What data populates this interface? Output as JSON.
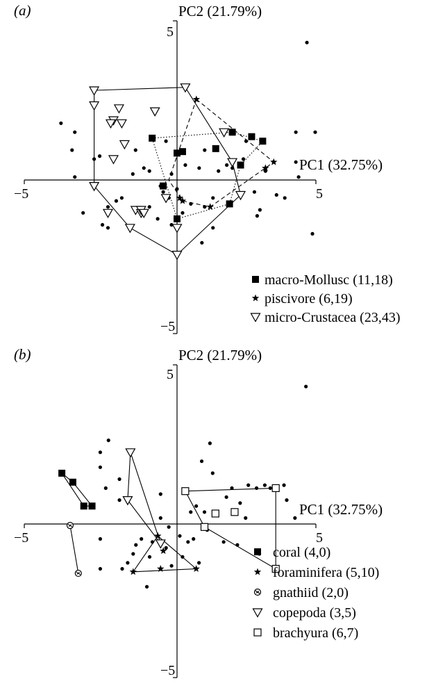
{
  "chart_data": [
    {
      "type": "scatter",
      "panel_label": "(a)",
      "xlabel": "PC1 (32.75%)",
      "ylabel": "PC2 (21.79%)",
      "xlim": [
        -5,
        5
      ],
      "ylim": [
        -5,
        5
      ],
      "ticks": {
        "x_neg": "−5",
        "x_pos": "5",
        "y_pos": "5",
        "y_neg": "−5"
      },
      "legend_placement": "bottom-right",
      "background_points": [
        [
          4.7,
          4.6
        ],
        [
          -4.2,
          1.9
        ],
        [
          -3.7,
          1.6
        ],
        [
          -3.8,
          1.0
        ],
        [
          -3.0,
          0.7
        ],
        [
          -2.8,
          0.8
        ],
        [
          -3.7,
          0.1
        ],
        [
          -3.4,
          -1.1
        ],
        [
          -2.7,
          -1.5
        ],
        [
          -2.5,
          -1.6
        ],
        [
          -2.2,
          -0.7
        ],
        [
          -2.5,
          -0.9
        ],
        [
          -2.0,
          -0.6
        ],
        [
          -1.5,
          1.0
        ],
        [
          -1.2,
          0.4
        ],
        [
          -1.0,
          0.3
        ],
        [
          -1.0,
          -0.9
        ],
        [
          -0.7,
          -1.3
        ],
        [
          -0.5,
          -0.4
        ],
        [
          -0.3,
          -0.6
        ],
        [
          -0.6,
          -0.2
        ],
        [
          -0.2,
          -1.5
        ],
        [
          0.0,
          -0.3
        ],
        [
          0.2,
          -1.1
        ],
        [
          0.5,
          -0.8
        ],
        [
          0.8,
          0.4
        ],
        [
          1.0,
          -0.9
        ],
        [
          1.3,
          -0.6
        ],
        [
          1.3,
          -1.6
        ],
        [
          1.5,
          0.3
        ],
        [
          1.8,
          0.5
        ],
        [
          2.0,
          0.4
        ],
        [
          2.4,
          0.7
        ],
        [
          2.5,
          1.3
        ],
        [
          2.8,
          -0.4
        ],
        [
          2.9,
          -1.2
        ],
        [
          3.0,
          -1.0
        ],
        [
          3.2,
          0.3
        ],
        [
          3.6,
          -0.5
        ],
        [
          3.9,
          -0.6
        ],
        [
          4.3,
          0.6
        ],
        [
          4.3,
          1.6
        ],
        [
          5.0,
          1.6
        ],
        [
          4.9,
          -1.8
        ],
        [
          4.4,
          0.1
        ],
        [
          0.9,
          -2.1
        ],
        [
          0.3,
          0.5
        ],
        [
          1.0,
          1.0
        ],
        [
          -0.4,
          1.3
        ],
        [
          -1.6,
          0.2
        ],
        [
          -0.2,
          0.2
        ],
        [
          0.1,
          0.9
        ]
      ],
      "series": [
        {
          "name": "macro-Mollusc (11,18)",
          "marker": "square",
          "line": "dotted",
          "points": [
            [
              -0.9,
              1.4
            ],
            [
              0.0,
              0.9
            ],
            [
              0.2,
              0.95
            ],
            [
              1.4,
              1.05
            ],
            [
              2.0,
              1.6
            ],
            [
              2.7,
              1.45
            ],
            [
              2.3,
              0.5
            ],
            [
              3.1,
              1.3
            ],
            [
              1.9,
              -0.8
            ],
            [
              0.0,
              -1.3
            ],
            [
              -0.5,
              -0.2
            ]
          ],
          "hull": [
            [
              -0.9,
              1.4
            ],
            [
              2.0,
              1.6
            ],
            [
              3.1,
              1.3
            ],
            [
              2.3,
              0.5
            ],
            [
              1.9,
              -0.8
            ],
            [
              0.0,
              -1.3
            ],
            [
              -0.9,
              1.4
            ]
          ]
        },
        {
          "name": "piscivore (6,19)",
          "marker": "star",
          "line": "dashed",
          "points": [
            [
              0.7,
              2.7
            ],
            [
              3.5,
              0.6
            ],
            [
              3.2,
              0.4
            ],
            [
              0.2,
              -0.7
            ],
            [
              1.2,
              -0.9
            ],
            [
              0.1,
              -0.6
            ]
          ],
          "hull": [
            [
              0.7,
              2.7
            ],
            [
              3.5,
              0.6
            ],
            [
              1.2,
              -0.9
            ],
            [
              0.2,
              -0.7
            ],
            [
              -0.3,
              0.0
            ],
            [
              0.7,
              2.7
            ]
          ]
        },
        {
          "name": "micro-Crustacea (23,43)",
          "marker": "triangle-down",
          "line": "solid",
          "points": [
            [
              -3.0,
              3.0
            ],
            [
              -3.0,
              2.5
            ],
            [
              -2.1,
              2.4
            ],
            [
              -2.3,
              2.0
            ],
            [
              -2.0,
              1.9
            ],
            [
              -2.4,
              1.9
            ],
            [
              -1.9,
              1.2
            ],
            [
              -2.3,
              0.7
            ],
            [
              -0.8,
              2.3
            ],
            [
              0.3,
              3.1
            ],
            [
              1.7,
              1.6
            ],
            [
              2.0,
              0.6
            ],
            [
              2.3,
              -0.5
            ],
            [
              -3.0,
              -0.2
            ],
            [
              -2.5,
              -1.1
            ],
            [
              -1.7,
              -1.6
            ],
            [
              -1.5,
              -1.0
            ],
            [
              -1.3,
              -1.1
            ],
            [
              -1.3,
              -1.0
            ],
            [
              -1.2,
              -1.1
            ],
            [
              0.0,
              -1.6
            ],
            [
              0.0,
              -2.5
            ],
            [
              -0.4,
              -0.6
            ]
          ],
          "hull": [
            [
              -3.0,
              3.0
            ],
            [
              0.3,
              3.1
            ],
            [
              2.0,
              0.6
            ],
            [
              2.3,
              -0.5
            ],
            [
              0.0,
              -2.5
            ],
            [
              -1.7,
              -1.6
            ],
            [
              -3.0,
              -0.2
            ],
            [
              -3.0,
              3.0
            ]
          ]
        }
      ]
    },
    {
      "type": "scatter",
      "panel_label": "(b)",
      "xlabel": "PC1 (32.75%)",
      "ylabel": "PC2 (21.79%)",
      "xlim": [
        -5,
        5
      ],
      "ylim": [
        -5,
        5
      ],
      "ticks": {
        "x_neg": "−5",
        "x_pos": "5",
        "y_pos": "5",
        "y_neg": "−5"
      },
      "legend_placement": "bottom-right",
      "background_points": [
        [
          4.7,
          4.6
        ],
        [
          -2.5,
          2.8
        ],
        [
          -2.8,
          2.4
        ],
        [
          -2.8,
          1.9
        ],
        [
          -2.1,
          1.5
        ],
        [
          -2.6,
          1.2
        ],
        [
          -2.1,
          0.8
        ],
        [
          -2.8,
          -0.5
        ],
        [
          -2.8,
          -1.5
        ],
        [
          -2.0,
          -1.5
        ],
        [
          -1.8,
          -1.3
        ],
        [
          -1.6,
          -1.0
        ],
        [
          -1.5,
          -0.7
        ],
        [
          -1.3,
          -0.5
        ],
        [
          -1.0,
          -1.1
        ],
        [
          -0.9,
          -0.6
        ],
        [
          -0.6,
          0.2
        ],
        [
          -0.4,
          -0.8
        ],
        [
          -0.3,
          -0.1
        ],
        [
          -0.2,
          -1.4
        ],
        [
          0.1,
          -0.4
        ],
        [
          0.2,
          -1.1
        ],
        [
          0.4,
          -0.6
        ],
        [
          0.6,
          -0.5
        ],
        [
          0.7,
          0.6
        ],
        [
          0.8,
          -1.3
        ],
        [
          1.0,
          0.4
        ],
        [
          1.1,
          -0.2
        ],
        [
          1.2,
          2.7
        ],
        [
          1.3,
          1.7
        ],
        [
          1.7,
          -0.6
        ],
        [
          1.8,
          0.9
        ],
        [
          2.0,
          1.2
        ],
        [
          2.2,
          -0.7
        ],
        [
          2.3,
          0.7
        ],
        [
          2.5,
          0.2
        ],
        [
          2.6,
          1.3
        ],
        [
          2.9,
          1.2
        ],
        [
          3.0,
          -1.0
        ],
        [
          3.2,
          1.3
        ],
        [
          3.4,
          1.2
        ],
        [
          3.9,
          1.3
        ],
        [
          4.0,
          0.8
        ],
        [
          4.3,
          0.2
        ],
        [
          0.9,
          2.1
        ],
        [
          -1.1,
          -2.1
        ],
        [
          -0.6,
          1.0
        ],
        [
          0.5,
          0.4
        ]
      ],
      "series": [
        {
          "name": "coral (4,0)",
          "marker": "square",
          "line": "solid",
          "points": [
            [
              -4.2,
              1.7
            ],
            [
              -3.8,
              1.4
            ],
            [
              -3.4,
              0.6
            ],
            [
              -3.1,
              0.6
            ]
          ],
          "hull": [
            [
              -4.2,
              1.7
            ],
            [
              -3.8,
              1.4
            ],
            [
              -3.1,
              0.6
            ],
            [
              -3.4,
              0.6
            ],
            [
              -4.2,
              1.7
            ]
          ]
        },
        {
          "name": "foraminifera (5,10)",
          "marker": "star",
          "line": "solid",
          "points": [
            [
              -1.6,
              -1.6
            ],
            [
              -0.6,
              -1.5
            ],
            [
              -0.5,
              -0.9
            ],
            [
              0.7,
              -1.5
            ],
            [
              -0.7,
              -0.4
            ]
          ],
          "hull": [
            [
              -1.6,
              -1.6
            ],
            [
              -0.7,
              -0.4
            ],
            [
              0.7,
              -1.5
            ],
            [
              -1.6,
              -1.6
            ]
          ]
        },
        {
          "name": "gnathiid (2,0)",
          "marker": "circle-cross",
          "line": "solid",
          "points": [
            [
              -3.9,
              -0.05
            ],
            [
              -3.6,
              -1.65
            ]
          ],
          "hull": [
            [
              -3.9,
              -0.05
            ],
            [
              -3.6,
              -1.65
            ]
          ]
        },
        {
          "name": "copepoda (3,5)",
          "marker": "triangle-down",
          "line": "solid",
          "points": [
            [
              -1.7,
              2.4
            ],
            [
              -1.8,
              0.8
            ],
            [
              -0.6,
              -0.65
            ]
          ],
          "hull": [
            [
              -1.7,
              2.4
            ],
            [
              -1.8,
              0.8
            ],
            [
              -0.6,
              -0.65
            ],
            [
              -1.7,
              2.4
            ]
          ]
        },
        {
          "name": "brachyura (6,7)",
          "marker": "open-square",
          "line": "solid",
          "points": [
            [
              0.3,
              1.1
            ],
            [
              3.6,
              1.2
            ],
            [
              3.6,
              -1.5
            ],
            [
              1.0,
              -0.1
            ],
            [
              1.4,
              0.35
            ],
            [
              2.1,
              0.4
            ]
          ],
          "hull": [
            [
              0.3,
              1.1
            ],
            [
              3.6,
              1.2
            ],
            [
              3.6,
              -1.5
            ],
            [
              1.0,
              -0.1
            ],
            [
              0.3,
              1.1
            ]
          ]
        }
      ]
    }
  ]
}
